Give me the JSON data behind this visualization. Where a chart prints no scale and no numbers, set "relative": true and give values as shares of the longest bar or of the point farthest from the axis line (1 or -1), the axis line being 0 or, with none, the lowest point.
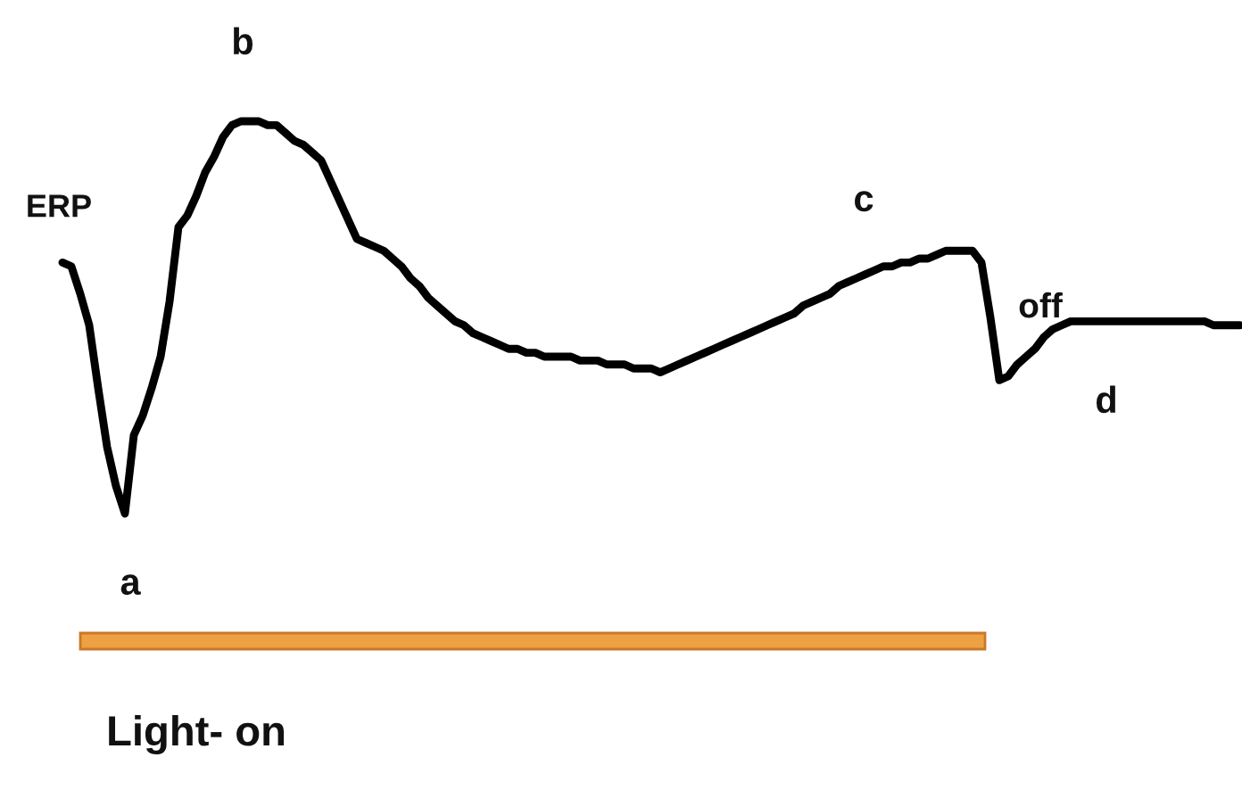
{
  "chart_data": {
    "type": "line",
    "relative": true,
    "color": "#000000",
    "categories": [
      null,
      null,
      null,
      null,
      null,
      null,
      null,
      null,
      null,
      null,
      null,
      null,
      null,
      null,
      null,
      null,
      null,
      null,
      null,
      null,
      null,
      null,
      null,
      null,
      null,
      null,
      null,
      null,
      null,
      null,
      null,
      null,
      null,
      null,
      null,
      null,
      null,
      null,
      null,
      null,
      null,
      null,
      null,
      null,
      null,
      null,
      null,
      null,
      null,
      null,
      null,
      null,
      null,
      null,
      null,
      null,
      null,
      null,
      null,
      null,
      null,
      null,
      null,
      null,
      null,
      null,
      null,
      null,
      null,
      null,
      null,
      null,
      null,
      null,
      null,
      null,
      null,
      null,
      null,
      null,
      null,
      null,
      null,
      null,
      null,
      null,
      null,
      null,
      null,
      null,
      null,
      null,
      null,
      null,
      null,
      null,
      null,
      null,
      null,
      null,
      null,
      null,
      null,
      null,
      null,
      null,
      null,
      null,
      null,
      null,
      null,
      null,
      null,
      null,
      null,
      null,
      null,
      null,
      null,
      null,
      null,
      null,
      null,
      null,
      null,
      null,
      null,
      null,
      null,
      null,
      null,
      null,
      null
    ],
    "values": [
      0.64,
      0.63,
      0.56,
      0.48,
      0.32,
      0.17,
      0.07,
      0,
      0.2,
      0.25,
      0.32,
      0.4,
      0.54,
      0.73,
      0.76,
      0.81,
      0.87,
      0.91,
      0.96,
      0.99,
      1,
      1,
      1,
      0.99,
      0.99,
      0.97,
      0.95,
      0.94,
      0.92,
      0.9,
      0.85,
      0.8,
      0.75,
      0.7,
      0.69,
      0.68,
      0.67,
      0.65,
      0.63,
      0.6,
      0.58,
      0.55,
      0.53,
      0.51,
      0.49,
      0.48,
      0.46,
      0.45,
      0.44,
      0.43,
      0.42,
      0.42,
      0.41,
      0.41,
      0.4,
      0.4,
      0.4,
      0.4,
      0.39,
      0.39,
      0.39,
      0.38,
      0.38,
      0.38,
      0.37,
      0.37,
      0.37,
      0.36,
      0.37,
      0.38,
      0.39,
      0.4,
      0.41,
      0.42,
      0.43,
      0.44,
      0.45,
      0.46,
      0.47,
      0.48,
      0.49,
      0.5,
      0.51,
      0.53,
      0.54,
      0.55,
      0.56,
      0.58,
      0.59,
      0.6,
      0.61,
      0.62,
      0.63,
      0.63,
      0.64,
      0.64,
      0.65,
      0.65,
      0.66,
      0.67,
      0.67,
      0.67,
      0.67,
      0.64,
      0.5,
      0.34,
      0.35,
      0.38,
      0.4,
      0.42,
      0.45,
      0.47,
      0.48,
      0.49,
      0.49,
      0.49,
      0.49,
      0.49,
      0.49,
      0.49,
      0.49,
      0.49,
      0.49,
      0.49,
      0.49,
      0.49,
      0.49,
      0.49,
      0.49,
      0.48,
      0.48,
      0.48,
      0.48
    ],
    "annotations": [
      "ERP",
      "b",
      "a",
      "c",
      "off",
      "d",
      "Light- on"
    ]
  }
}
